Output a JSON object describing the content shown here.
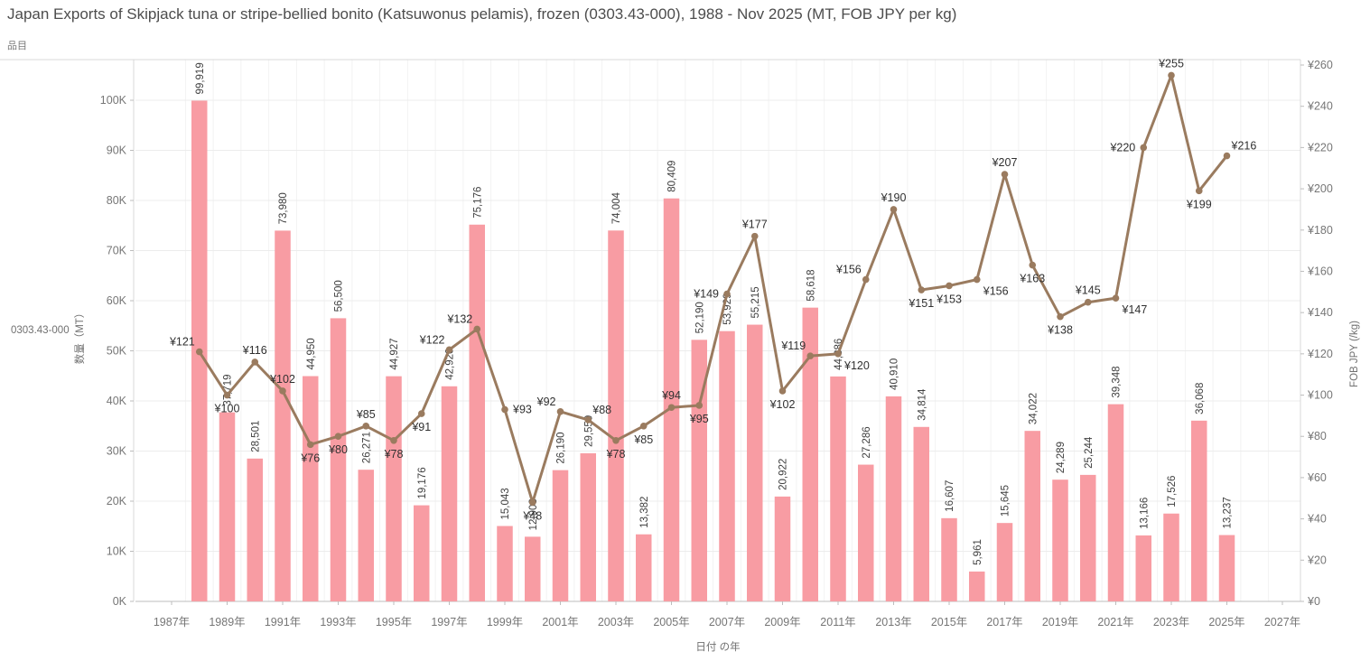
{
  "header": {
    "title": "Japan Exports of Skipjack tuna or stripe-bellied bonito (Katsuwonus pelamis), frozen (0303.43-000), 1988 - Nov 2025 (MT, FOB JPY per kg)",
    "pane_label": "品目"
  },
  "chart_data": {
    "type": "bar+line combo",
    "title": "Japan Exports of Skipjack tuna or stripe-bellied bonito (Katsuwonus pelamis), frozen (0303.43-000), 1988 - Nov 2025 (MT, FOB JPY per kg)",
    "row_label": "0303.43-000",
    "x": [
      1988,
      1989,
      1990,
      1991,
      1992,
      1993,
      1994,
      1995,
      1996,
      1997,
      1998,
      1999,
      2000,
      2001,
      2002,
      2003,
      2004,
      2005,
      2006,
      2007,
      2008,
      2009,
      2010,
      2011,
      2012,
      2013,
      2014,
      2015,
      2016,
      2017,
      2018,
      2019,
      2020,
      2021,
      2022,
      2023,
      2024,
      2025
    ],
    "series": [
      {
        "name": "数量（MT）",
        "type": "bar",
        "axis": "left",
        "color": "#F89CA3",
        "values": [
          99919,
          37719,
          28501,
          73980,
          44950,
          56500,
          26271,
          44927,
          19176,
          42920,
          75176,
          15043,
          12908,
          26190,
          29559,
          74004,
          13382,
          80409,
          52190,
          53929,
          55215,
          20922,
          58618,
          44886,
          27286,
          40910,
          34814,
          16607,
          5961,
          15645,
          34022,
          24289,
          25244,
          39348,
          13166,
          17526,
          36068,
          13237
        ]
      },
      {
        "name": "FOB JPY (/kg)",
        "type": "line",
        "axis": "right",
        "color": "#9A7B5F",
        "label_prefix": "¥",
        "values": [
          121,
          100,
          116,
          102,
          76,
          80,
          85,
          78,
          91,
          122,
          132,
          93,
          48,
          92,
          88,
          78,
          85,
          94,
          95,
          149,
          177,
          102,
          119,
          120,
          156,
          190,
          151,
          153,
          156,
          207,
          163,
          138,
          145,
          147,
          220,
          255,
          199,
          216
        ],
        "label_sides": [
          "above-left",
          "below",
          "above",
          "above",
          "below",
          "below",
          "above",
          "below",
          "below",
          "above-left",
          "above-left",
          "right",
          "below",
          "above-left",
          "above-right",
          "below",
          "below",
          "above",
          "below",
          "left",
          "above",
          "below",
          "above-left",
          "below-right",
          "above-left",
          "above",
          "below",
          "below",
          "below-right",
          "above",
          "below",
          "below",
          "above",
          "below-right",
          "left",
          "above",
          "below",
          "above-right"
        ]
      }
    ],
    "left_axis": {
      "title": "数量（MT）",
      "min": 0,
      "max": 100000,
      "step": 10000,
      "suffix": "K"
    },
    "right_axis": {
      "title": "FOB JPY (/kg)",
      "min": 0,
      "max": 260,
      "step": 20,
      "prefix": "¥"
    },
    "x_axis": {
      "title": "日付 の年",
      "first_tick": 1987,
      "last_tick": 2027,
      "tick_step": 2,
      "suffix": "年"
    },
    "grid": "horizontal light gray, faint vertical year dividers",
    "legend_position": "none"
  },
  "colors": {
    "bar": "#F89CA3",
    "line": "#9A7B5F",
    "grid": "#ECECEC",
    "grid_vertical": "#F2F2F2",
    "axis_line": "#D8D8D8",
    "domain_line": "#BDBDBD",
    "tick_text": "#767676",
    "bar_label_text": "#3F3F3F",
    "line_label_text": "#303030",
    "title_text": "#4D4D4D"
  }
}
